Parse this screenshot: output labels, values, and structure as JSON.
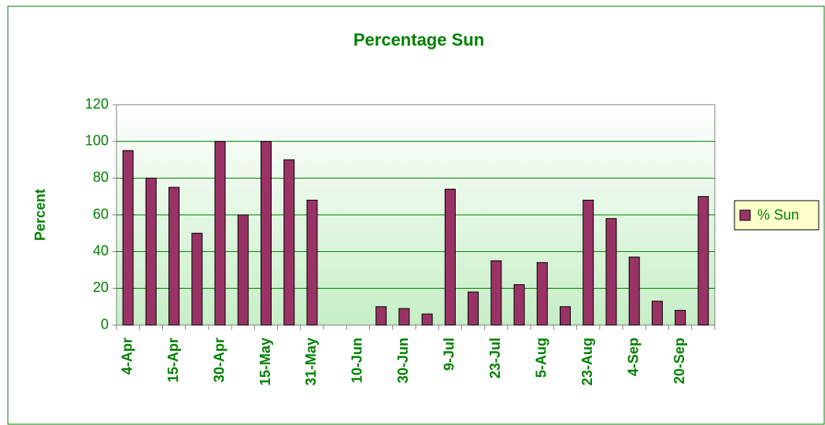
{
  "chart_data": {
    "type": "bar",
    "title": "Percentage Sun",
    "y_label": "Percent",
    "categories": [
      "4-Apr",
      null,
      "15-Apr",
      null,
      "30-Apr",
      null,
      "15-May",
      null,
      "31-May",
      null,
      "10-Jun",
      null,
      "30-Jun",
      null,
      "9-Jul",
      null,
      "23-Jul",
      null,
      "5-Aug",
      null,
      "23-Aug",
      null,
      "4-Sep",
      null,
      "20-Sep",
      null
    ],
    "series": [
      {
        "name": "% Sun",
        "color": "#993366",
        "values": [
          95,
          80,
          75,
          50,
          100,
          60,
          100,
          90,
          68,
          null,
          null,
          10,
          9,
          6,
          74,
          18,
          35,
          22,
          34,
          10,
          68,
          58,
          37,
          13,
          8,
          70
        ]
      }
    ],
    "ylim": [
      0,
      120
    ],
    "yticks": [
      0,
      20,
      40,
      60,
      80,
      100,
      120
    ],
    "grid": true,
    "legend": "right"
  }
}
